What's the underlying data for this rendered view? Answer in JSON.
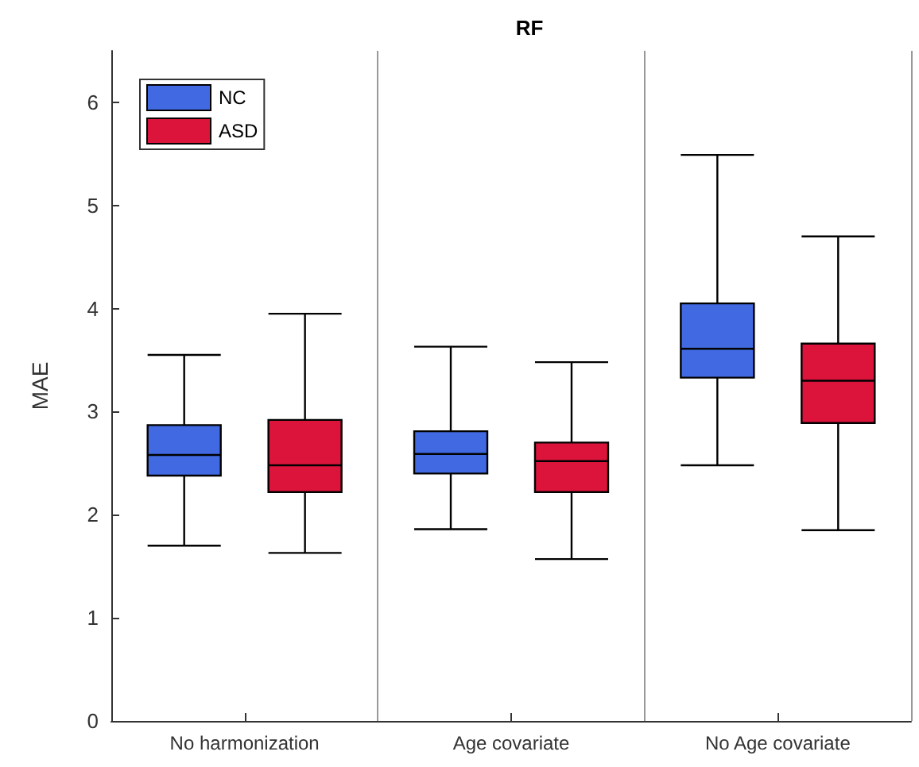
{
  "chart_data": {
    "type": "box",
    "title": "RF",
    "ylabel": "MAE",
    "categories": [
      "No harmonization",
      "Age covariate",
      "No Age covariate"
    ],
    "ylim": [
      0,
      6.5
    ],
    "yticks": [
      0,
      1,
      2,
      3,
      4,
      5,
      6
    ],
    "grid": "x",
    "legend": "top left",
    "series": [
      {
        "name": "NC",
        "color": "#4169e1",
        "boxes": [
          {
            "low": 1.7,
            "q1": 2.38,
            "median": 2.58,
            "q3": 2.87,
            "high": 3.55
          },
          {
            "low": 1.86,
            "q1": 2.4,
            "median": 2.59,
            "q3": 2.81,
            "high": 3.63
          },
          {
            "low": 2.48,
            "q1": 3.33,
            "median": 3.61,
            "q3": 4.05,
            "high": 5.49
          }
        ]
      },
      {
        "name": "ASD",
        "color": "#dc143c",
        "boxes": [
          {
            "low": 1.63,
            "q1": 2.22,
            "median": 2.48,
            "q3": 2.92,
            "high": 3.95
          },
          {
            "low": 1.57,
            "q1": 2.22,
            "median": 2.52,
            "q3": 2.7,
            "high": 3.48
          },
          {
            "low": 1.85,
            "q1": 2.89,
            "median": 3.3,
            "q3": 3.66,
            "high": 4.7
          }
        ]
      }
    ]
  }
}
